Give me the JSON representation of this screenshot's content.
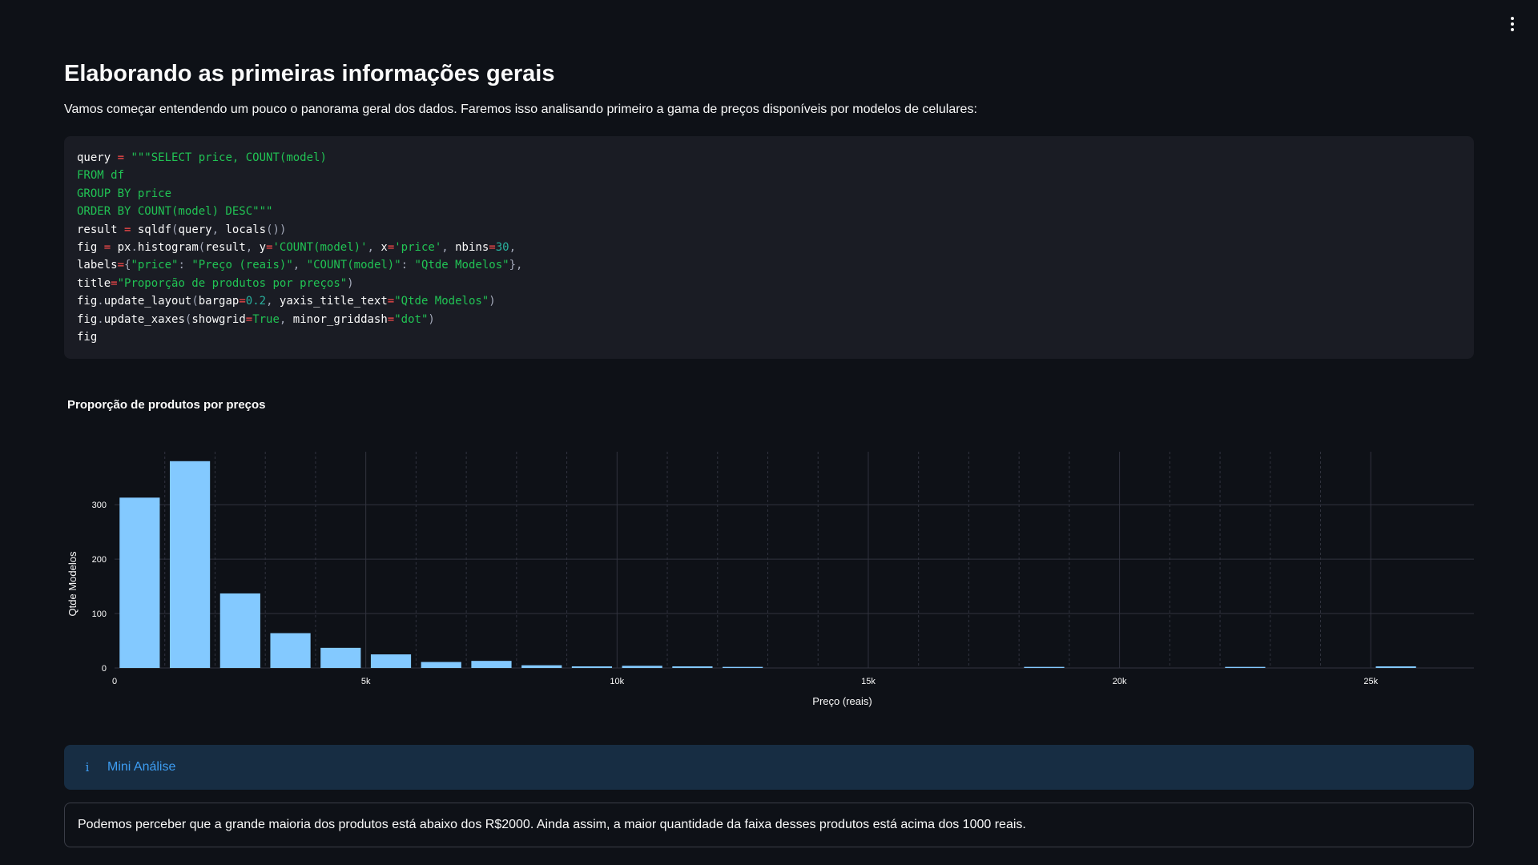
{
  "header": {
    "menu_icon": "more-vertical-icon"
  },
  "page": {
    "title": "Elaborando as primeiras informações gerais",
    "intro": "Vamos começar entendendo um pouco o panorama geral dos dados. Faremos isso analisando primeiro a gama de preços disponíveis por modelos de celulares:"
  },
  "code": {
    "lines": [
      "query = \"\"\"SELECT price, COUNT(model)",
      "FROM df",
      "GROUP BY price",
      "ORDER BY COUNT(model) DESC\"\"\"",
      "result = sqldf(query, locals())",
      "fig = px.histogram(result, y='COUNT(model)', x='price', nbins=30,",
      "labels={\"price\": \"Preço (reais)\", \"COUNT(model)\": \"Qtde Modelos\"},",
      "title=\"Proporção de produtos por preços\")",
      "fig.update_layout(bargap=0.2, yaxis_title_text=\"Qtde Modelos\")",
      "fig.update_xaxes(showgrid=True, minor_griddash=\"dot\")",
      "fig"
    ]
  },
  "chart_data": {
    "type": "bar",
    "title": "Proporção de produtos por preços",
    "xlabel": "Preço (reais)",
    "ylabel": "Qtde Modelos",
    "bin_width": 1000,
    "bins": [
      {
        "x0": 0,
        "value": 313
      },
      {
        "x0": 1000,
        "value": 380
      },
      {
        "x0": 2000,
        "value": 137
      },
      {
        "x0": 3000,
        "value": 64
      },
      {
        "x0": 4000,
        "value": 37
      },
      {
        "x0": 5000,
        "value": 25
      },
      {
        "x0": 6000,
        "value": 11
      },
      {
        "x0": 7000,
        "value": 13
      },
      {
        "x0": 8000,
        "value": 5
      },
      {
        "x0": 9000,
        "value": 3
      },
      {
        "x0": 10000,
        "value": 4
      },
      {
        "x0": 11000,
        "value": 3
      },
      {
        "x0": 12000,
        "value": 2
      },
      {
        "x0": 18000,
        "value": 2
      },
      {
        "x0": 22000,
        "value": 2
      },
      {
        "x0": 25000,
        "value": 3
      }
    ],
    "xlim": [
      0,
      26000
    ],
    "ylim": [
      0,
      400
    ],
    "x_ticks": [
      {
        "value": 0,
        "label": "0"
      },
      {
        "value": 5000,
        "label": "5k"
      },
      {
        "value": 10000,
        "label": "10k"
      },
      {
        "value": 15000,
        "label": "15k"
      },
      {
        "value": 20000,
        "label": "20k"
      },
      {
        "value": 25000,
        "label": "25k"
      }
    ],
    "y_ticks": [
      {
        "value": 0,
        "label": "0"
      },
      {
        "value": 100,
        "label": "100"
      },
      {
        "value": 200,
        "label": "200"
      },
      {
        "value": 300,
        "label": "300"
      }
    ],
    "x_minor_grid_step": 1000,
    "grid": true,
    "minor_griddash": "dot",
    "bar_color": "#83c9ff",
    "bargap": 0.2
  },
  "info": {
    "icon": "info-icon",
    "glyph": "i",
    "label": "Mini Análise"
  },
  "analysis": {
    "text": "Podemos perceber que a grande maioria dos produtos está abaixo dos R$2000. Ainda assim, a maior quantidade da faixa desses produtos está acima dos 1000 reais."
  }
}
